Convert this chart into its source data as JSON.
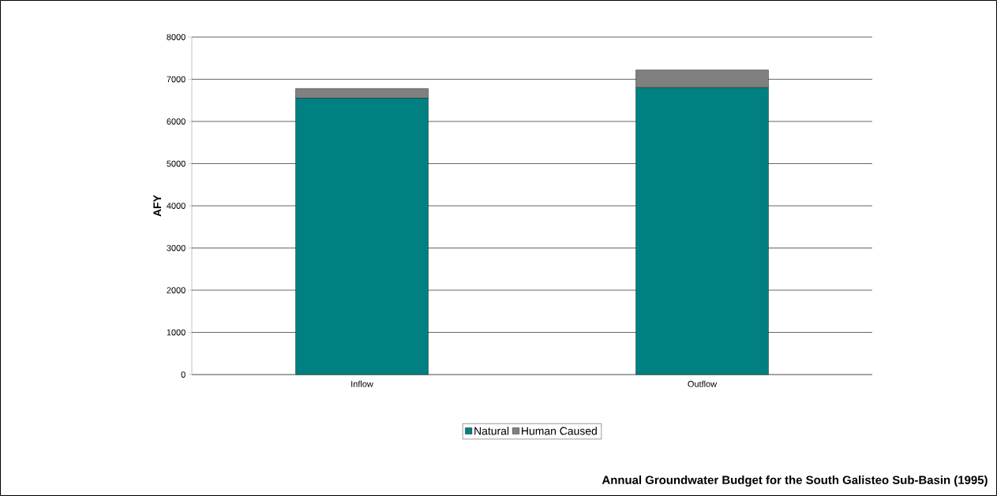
{
  "chart_data": {
    "type": "bar",
    "title": "Annual Groundwater Budget for the South Galisteo Sub-Basin (1995)",
    "ylabel": "AFY",
    "categories": [
      "Inflow",
      "Outflow"
    ],
    "stacked": true,
    "series": [
      {
        "name": "Natural",
        "color": "#008080",
        "values": [
          6550,
          6800
        ]
      },
      {
        "name": "Human Caused",
        "color": "#808080",
        "values": [
          230,
          420
        ]
      }
    ],
    "ylim": [
      0,
      8000
    ],
    "yticks": [
      0,
      1000,
      2000,
      3000,
      4000,
      5000,
      6000,
      7000,
      8000
    ],
    "grid": "y",
    "legend": "bottom"
  }
}
